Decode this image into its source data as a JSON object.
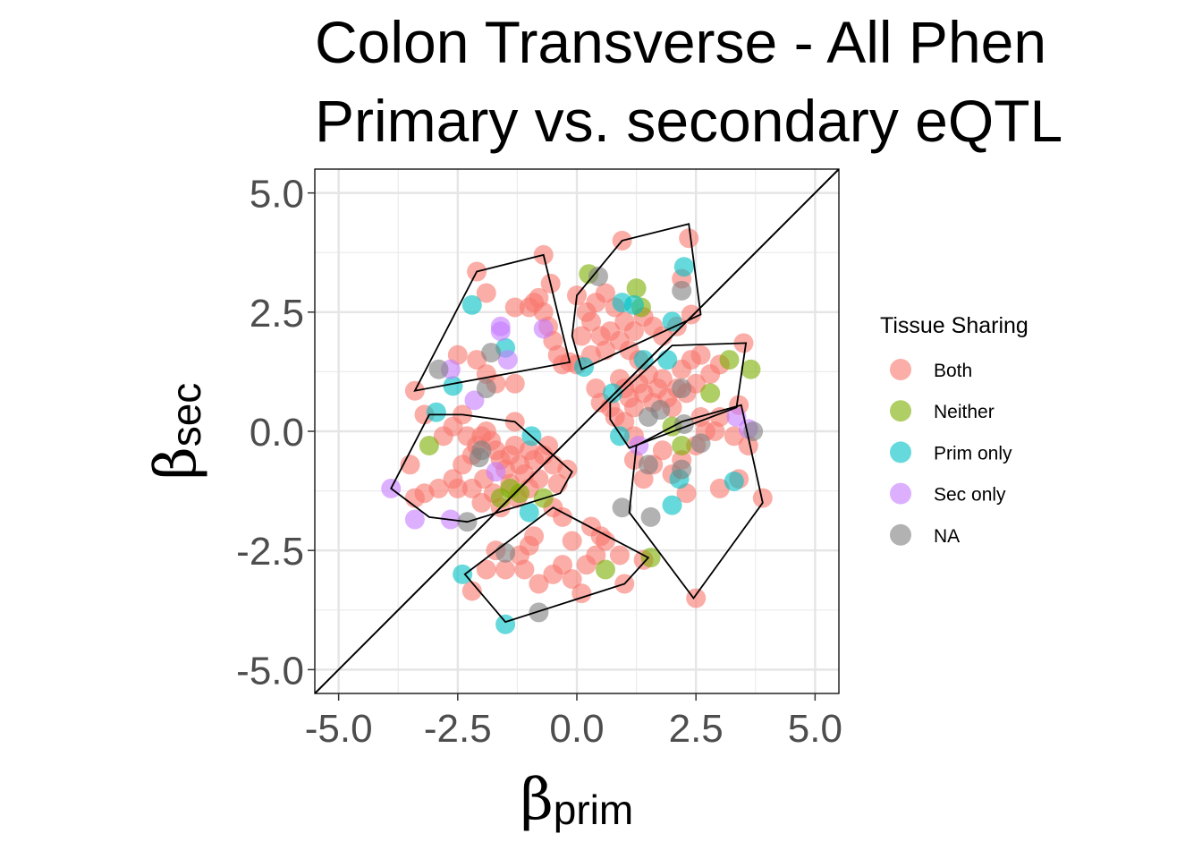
{
  "chart_data": {
    "type": "scatter",
    "title_lines": [
      "Colon Transverse - All Phen",
      "Primary vs. secondary eQTL"
    ],
    "xlabel": {
      "symbol": "β",
      "subscript": "prim"
    },
    "ylabel": {
      "symbol": "β",
      "subscript": "sec"
    },
    "xlim": [
      -5.5,
      5.5
    ],
    "ylim": [
      -5.5,
      5.5
    ],
    "xticks": [
      "-5.0",
      "-2.5",
      "0.0",
      "2.5",
      "5.0"
    ],
    "yticks": [
      "5.0",
      "2.5",
      "0.0",
      "-2.5",
      "-5.0"
    ],
    "xtick_values": [
      -5,
      -2.5,
      0,
      2.5,
      5
    ],
    "ytick_values": [
      5,
      2.5,
      0,
      -2.5,
      -5
    ],
    "grid": true,
    "reference_line": "y = x",
    "legend": {
      "title": "Tissue Sharing",
      "position": "right",
      "entries": [
        {
          "label": "Both",
          "color": "#F8766D"
        },
        {
          "label": "Neither",
          "color": "#7CAE00"
        },
        {
          "label": "Prim only",
          "color": "#00BFC4"
        },
        {
          "label": "Sec only",
          "color": "#C77CFF"
        },
        {
          "label": "NA",
          "color": "#7F7F7F"
        }
      ]
    },
    "hulls": [
      [
        [
          -2.1,
          3.35
        ],
        [
          -0.7,
          3.7
        ],
        [
          -0.15,
          1.45
        ],
        [
          -3.4,
          0.85
        ]
      ],
      [
        [
          -3.1,
          0.35
        ],
        [
          -2.4,
          0.35
        ],
        [
          -1.3,
          0.2
        ],
        [
          -0.1,
          -0.85
        ],
        [
          -0.35,
          -1.3
        ],
        [
          -2.3,
          -1.9
        ],
        [
          -3.1,
          -1.8
        ],
        [
          -3.9,
          -1.2
        ]
      ],
      [
        [
          -0.5,
          -1.6
        ],
        [
          1.5,
          -2.65
        ],
        [
          1.0,
          -3.2
        ],
        [
          -1.5,
          -4.0
        ],
        [
          -2.35,
          -3.0
        ]
      ],
      [
        [
          0.0,
          2.85
        ],
        [
          0.95,
          4.0
        ],
        [
          2.35,
          4.35
        ],
        [
          2.6,
          2.45
        ],
        [
          0.1,
          1.3
        ],
        [
          -0.1,
          2.0
        ]
      ],
      [
        [
          0.7,
          0.6
        ],
        [
          2.0,
          1.8
        ],
        [
          3.55,
          1.85
        ],
        [
          3.35,
          0.5
        ],
        [
          1.1,
          -0.35
        ],
        [
          0.7,
          0.25
        ]
      ],
      [
        [
          3.45,
          0.55
        ],
        [
          2.2,
          0.2
        ],
        [
          1.25,
          -0.3
        ],
        [
          1.1,
          -1.7
        ],
        [
          2.45,
          -3.5
        ],
        [
          3.9,
          -1.5
        ]
      ]
    ],
    "series": [
      {
        "name": "Both",
        "color": "#F8766D",
        "points": [
          [
            -2.1,
            3.35
          ],
          [
            -0.7,
            3.7
          ],
          [
            -3.4,
            0.85
          ],
          [
            -3.2,
            0.35
          ],
          [
            -2.4,
            0.35
          ],
          [
            -1.3,
            0.2
          ],
          [
            -3.5,
            -0.7
          ],
          [
            -3.4,
            -1.4
          ],
          [
            -3.2,
            -1.3
          ],
          [
            -2.9,
            -1.2
          ],
          [
            -2.6,
            -1.0
          ],
          [
            -2.5,
            -1.2
          ],
          [
            -2.4,
            -0.7
          ],
          [
            -2.2,
            -0.5
          ],
          [
            -2.1,
            -0.3
          ],
          [
            -2.0,
            -0.1
          ],
          [
            -1.9,
            0.0
          ],
          [
            -1.8,
            -0.2
          ],
          [
            -1.7,
            -0.4
          ],
          [
            -1.6,
            -0.6
          ],
          [
            -1.5,
            -0.8
          ],
          [
            -1.4,
            -0.5
          ],
          [
            -1.3,
            -0.3
          ],
          [
            -1.2,
            -0.7
          ],
          [
            -1.1,
            -0.9
          ],
          [
            -1.0,
            -0.4
          ],
          [
            -0.9,
            -0.6
          ],
          [
            -0.8,
            -1.0
          ],
          [
            -0.7,
            -0.5
          ],
          [
            -0.6,
            -0.3
          ],
          [
            -0.5,
            -0.7
          ],
          [
            -0.4,
            -1.1
          ],
          [
            -0.2,
            -0.8
          ],
          [
            -2.8,
            -0.1
          ],
          [
            -2.6,
            0.1
          ],
          [
            -2.3,
            -0.1
          ],
          [
            -1.95,
            -1.0
          ],
          [
            -1.75,
            -1.3
          ],
          [
            -1.6,
            -1.6
          ],
          [
            -1.4,
            -1.1
          ],
          [
            -1.25,
            -1.4
          ],
          [
            -1.0,
            -1.2
          ],
          [
            -2.2,
            -1.2
          ],
          [
            -2.0,
            -1.5
          ],
          [
            -2.5,
            1.6
          ],
          [
            -2.1,
            1.5
          ],
          [
            -1.9,
            1.2
          ],
          [
            -1.7,
            1.0
          ],
          [
            -1.3,
            1.0
          ],
          [
            -1.9,
            2.9
          ],
          [
            -1.3,
            2.6
          ],
          [
            -0.8,
            2.8
          ],
          [
            -0.7,
            2.5
          ],
          [
            -0.6,
            2.2
          ],
          [
            -0.5,
            1.9
          ],
          [
            -0.4,
            1.6
          ],
          [
            -0.3,
            1.4
          ],
          [
            -1.0,
            2.6
          ],
          [
            -0.9,
            2.7
          ],
          [
            -0.55,
            3.1
          ],
          [
            -0.15,
            1.45
          ],
          [
            -0.5,
            -1.6
          ],
          [
            -0.9,
            -2.2
          ],
          [
            -1.0,
            -2.4
          ],
          [
            -1.2,
            -2.6
          ],
          [
            -1.5,
            -2.9
          ],
          [
            -1.7,
            -2.5
          ],
          [
            -1.9,
            -2.9
          ],
          [
            -2.2,
            -3.35
          ],
          [
            -1.1,
            -2.9
          ],
          [
            -0.8,
            -3.2
          ],
          [
            -0.5,
            -3.0
          ],
          [
            -0.3,
            -2.8
          ],
          [
            -0.1,
            -3.1
          ],
          [
            0.1,
            -3.4
          ],
          [
            0.2,
            -2.8
          ],
          [
            0.4,
            -2.6
          ],
          [
            0.6,
            -2.3
          ],
          [
            0.3,
            -2.0
          ],
          [
            -0.3,
            -1.8
          ],
          [
            -0.1,
            -2.3
          ],
          [
            1.0,
            -3.2
          ],
          [
            1.4,
            -2.7
          ],
          [
            0.9,
            -2.6
          ],
          [
            0.5,
            -2.2
          ],
          [
            0.0,
            2.85
          ],
          [
            0.95,
            4.0
          ],
          [
            2.35,
            4.05
          ],
          [
            2.4,
            2.45
          ],
          [
            0.2,
            2.5
          ],
          [
            0.4,
            2.7
          ],
          [
            0.6,
            2.9
          ],
          [
            0.8,
            2.6
          ],
          [
            1.0,
            2.3
          ],
          [
            1.2,
            2.1
          ],
          [
            1.4,
            2.4
          ],
          [
            1.6,
            2.2
          ],
          [
            1.8,
            2.0
          ],
          [
            2.1,
            2.2
          ],
          [
            0.1,
            2.0
          ],
          [
            0.3,
            2.3
          ],
          [
            0.5,
            2.0
          ],
          [
            0.7,
            2.1
          ],
          [
            0.9,
            1.9
          ],
          [
            1.1,
            1.7
          ],
          [
            1.3,
            1.5
          ],
          [
            0.0,
            1.4
          ],
          [
            0.3,
            1.6
          ],
          [
            0.6,
            1.7
          ],
          [
            2.2,
            3.2
          ],
          [
            0.9,
            1.1
          ],
          [
            1.0,
            0.9
          ],
          [
            1.1,
            0.7
          ],
          [
            1.2,
            0.5
          ],
          [
            1.3,
            1.0
          ],
          [
            1.4,
            0.8
          ],
          [
            1.5,
            1.2
          ],
          [
            1.6,
            0.6
          ],
          [
            1.7,
            0.9
          ],
          [
            1.8,
            1.1
          ],
          [
            1.9,
            0.7
          ],
          [
            2.0,
            0.5
          ],
          [
            2.1,
            0.9
          ],
          [
            2.2,
            1.3
          ],
          [
            2.3,
            0.8
          ],
          [
            2.4,
            1.5
          ],
          [
            2.5,
            1.0
          ],
          [
            2.6,
            1.6
          ],
          [
            2.8,
            1.2
          ],
          [
            3.0,
            1.4
          ],
          [
            3.5,
            1.85
          ],
          [
            0.8,
            0.3
          ],
          [
            1.0,
            0.2
          ],
          [
            1.2,
            -0.1
          ],
          [
            3.4,
            0.55
          ],
          [
            3.0,
            0.3
          ],
          [
            2.7,
            0.0
          ],
          [
            2.5,
            -0.3
          ],
          [
            2.2,
            -0.6
          ],
          [
            2.0,
            -0.9
          ],
          [
            1.8,
            -0.4
          ],
          [
            1.6,
            -0.7
          ],
          [
            1.4,
            -1.0
          ],
          [
            1.2,
            -0.6
          ],
          [
            2.3,
            -1.3
          ],
          [
            2.5,
            -3.5
          ],
          [
            3.9,
            -1.4
          ],
          [
            3.4,
            -1.0
          ],
          [
            3.0,
            -1.2
          ],
          [
            3.6,
            -0.3
          ],
          [
            3.3,
            -0.1
          ],
          [
            2.9,
            0.0
          ],
          [
            2.6,
            0.3
          ],
          [
            0.4,
            0.9
          ],
          [
            0.5,
            0.6
          ],
          [
            0.7,
            0.5
          ]
        ]
      },
      {
        "name": "Neither",
        "color": "#7CAE00",
        "points": [
          [
            -3.1,
            -0.3
          ],
          [
            -1.4,
            -1.2
          ],
          [
            -1.2,
            -1.3
          ],
          [
            -0.7,
            -1.4
          ],
          [
            -1.6,
            -1.4
          ],
          [
            0.25,
            3.3
          ],
          [
            1.25,
            3.0
          ],
          [
            1.35,
            2.6
          ],
          [
            0.6,
            -2.9
          ],
          [
            1.55,
            -2.65
          ],
          [
            2.8,
            0.8
          ],
          [
            3.2,
            1.5
          ],
          [
            3.65,
            1.3
          ],
          [
            2.0,
            0.1
          ],
          [
            2.2,
            -0.3
          ]
        ]
      },
      {
        "name": "Prim only",
        "color": "#00BFC4",
        "points": [
          [
            -2.2,
            2.65
          ],
          [
            -2.6,
            0.95
          ],
          [
            -2.95,
            0.4
          ],
          [
            -1.5,
            1.75
          ],
          [
            -0.95,
            -0.1
          ],
          [
            -1.0,
            -1.7
          ],
          [
            -2.4,
            -3.0
          ],
          [
            -1.5,
            -4.05
          ],
          [
            0.15,
            1.35
          ],
          [
            0.95,
            2.7
          ],
          [
            1.2,
            2.65
          ],
          [
            2.25,
            3.45
          ],
          [
            2.0,
            2.3
          ],
          [
            0.75,
            0.8
          ],
          [
            0.9,
            -0.1
          ],
          [
            1.4,
            1.5
          ],
          [
            1.9,
            1.5
          ],
          [
            2.15,
            -1.0
          ],
          [
            2.0,
            -1.55
          ],
          [
            3.3,
            -1.05
          ]
        ]
      },
      {
        "name": "Sec only",
        "color": "#C77CFF",
        "points": [
          [
            -3.9,
            -1.2
          ],
          [
            -3.4,
            -1.85
          ],
          [
            -2.65,
            -1.85
          ],
          [
            -2.65,
            1.3
          ],
          [
            -2.15,
            0.65
          ],
          [
            -1.6,
            2.2
          ],
          [
            -1.6,
            2.1
          ],
          [
            -1.45,
            1.5
          ],
          [
            -0.7,
            2.15
          ],
          [
            -1.7,
            -0.85
          ],
          [
            1.3,
            -0.3
          ],
          [
            3.35,
            0.3
          ],
          [
            3.6,
            0.05
          ]
        ]
      },
      {
        "name": "NA",
        "color": "#7F7F7F",
        "points": [
          [
            -2.9,
            1.3
          ],
          [
            -1.9,
            0.9
          ],
          [
            -1.8,
            1.65
          ],
          [
            -2.3,
            -1.9
          ],
          [
            -2.0,
            -0.4
          ],
          [
            -1.5,
            -2.55
          ],
          [
            -2.05,
            -0.55
          ],
          [
            -0.8,
            -3.8
          ],
          [
            0.45,
            3.25
          ],
          [
            2.2,
            2.95
          ],
          [
            2.2,
            0.9
          ],
          [
            1.75,
            0.45
          ],
          [
            1.5,
            0.3
          ],
          [
            0.95,
            -1.6
          ],
          [
            1.55,
            -1.8
          ],
          [
            2.25,
            0.15
          ],
          [
            2.6,
            -0.25
          ],
          [
            3.7,
            0.0
          ],
          [
            1.5,
            -0.7
          ],
          [
            2.2,
            -0.8
          ]
        ]
      }
    ]
  }
}
